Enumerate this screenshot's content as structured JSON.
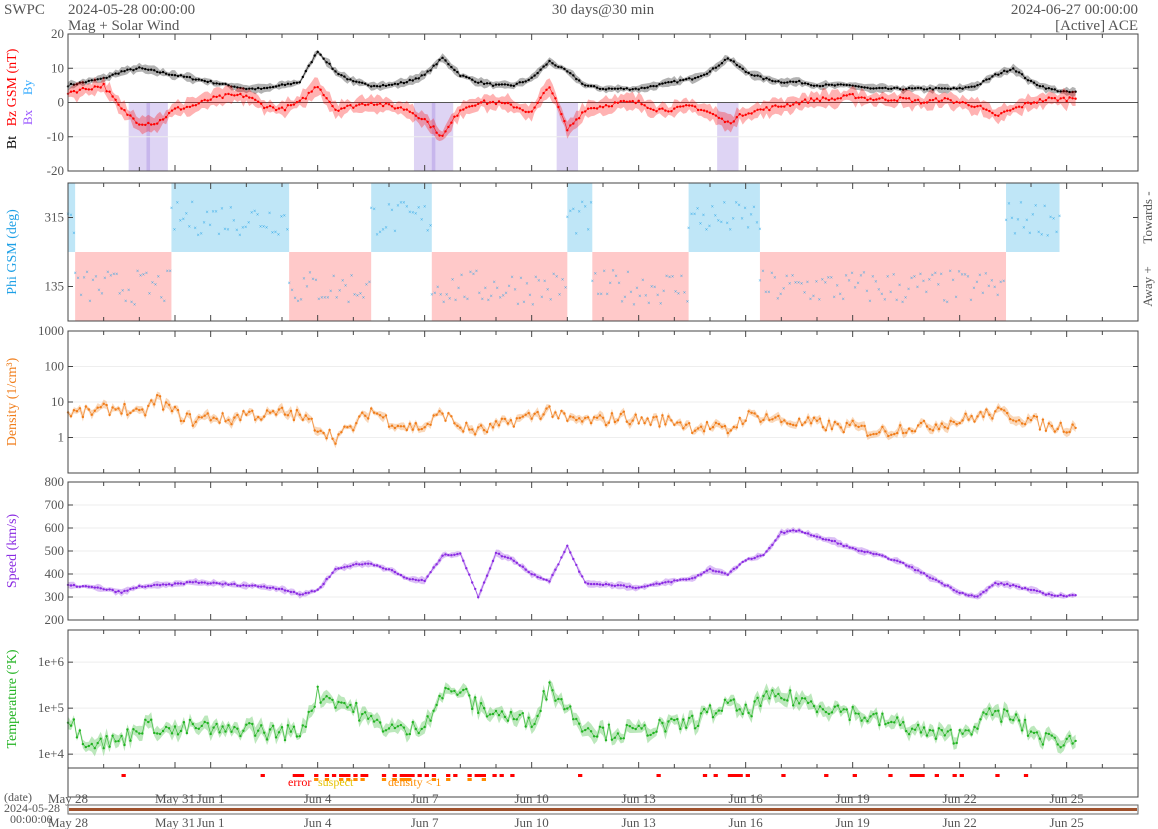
{
  "header": {
    "brand": "SWPC",
    "start": "2024-05-28 00:00:00",
    "subtitle": "Mag + Solar Wind",
    "span": "30 days@30 min",
    "end": "2024-06-27 00:00:00",
    "source": "[Active] ACE"
  },
  "chart_data": [
    {
      "type": "line",
      "panel": "mag",
      "ylabel": "Bz GSM (nT)",
      "ylabel_bt": "Bt",
      "legend": [
        "Bx",
        "By"
      ],
      "ylim": [
        -20,
        20
      ],
      "yticks": [
        "20",
        "10",
        "0",
        "-10",
        "-20"
      ],
      "x_step_days": 0.5,
      "series": [
        {
          "name": "Bt",
          "color": "#000000",
          "values": [
            5,
            6,
            7,
            9,
            10,
            9,
            8,
            7,
            6,
            5,
            4,
            4,
            5,
            6,
            15,
            9,
            6,
            5,
            5,
            6,
            8,
            13,
            8,
            6,
            5,
            5,
            7,
            12,
            9,
            5,
            4,
            4,
            4,
            5,
            6,
            7,
            9,
            13,
            9,
            7,
            6,
            6,
            5,
            5,
            5,
            4,
            4,
            4,
            4,
            4,
            4,
            5,
            8,
            10,
            6,
            4,
            3,
            3
          ]
        },
        {
          "name": "Bz",
          "color": "#ff0000",
          "values": [
            3,
            4,
            5,
            -2,
            -6,
            -6,
            -2,
            -1,
            1,
            2,
            2,
            -1,
            -2,
            0,
            5,
            -2,
            -1,
            0,
            -1,
            -2,
            -5,
            -10,
            -2,
            0,
            0,
            -1,
            -3,
            5,
            -8,
            -2,
            -1,
            0,
            0,
            -2,
            -2,
            -1,
            -3,
            -6,
            -3,
            -2,
            -1,
            0,
            1,
            1,
            2,
            1,
            1,
            1,
            0,
            1,
            0,
            -1,
            -4,
            -2,
            0,
            1,
            1,
            2
          ]
        }
      ]
    },
    {
      "type": "scatter",
      "panel": "phi",
      "ylabel": "Phi GSM (deg)",
      "ylim": [
        45,
        405
      ],
      "yticks": [
        "315",
        "135"
      ],
      "right_labels": [
        "Towards -",
        "Away +"
      ],
      "sectors": [
        {
          "from": 0,
          "to": 0.2,
          "s": "towards"
        },
        {
          "from": 0.2,
          "to": 2.9,
          "s": "away"
        },
        {
          "from": 2.9,
          "to": 6.2,
          "s": "towards"
        },
        {
          "from": 6.2,
          "to": 8.5,
          "s": "away"
        },
        {
          "from": 8.5,
          "to": 10.2,
          "s": "towards"
        },
        {
          "from": 10.2,
          "to": 14,
          "s": "away"
        },
        {
          "from": 14,
          "to": 14.7,
          "s": "towards"
        },
        {
          "from": 14.7,
          "to": 17.4,
          "s": "away"
        },
        {
          "from": 17.4,
          "to": 19.4,
          "s": "towards"
        },
        {
          "from": 19.4,
          "to": 26.3,
          "s": "away"
        },
        {
          "from": 26.3,
          "to": 27.8,
          "s": "towards"
        }
      ],
      "colors": {
        "towards": "#bfe6f7",
        "away": "#ffc9c9",
        "points": "#1ea0e6"
      }
    },
    {
      "type": "line",
      "panel": "density",
      "ylabel": "Density (1/cm³)",
      "scale": "log",
      "ylim": [
        0.1,
        1000
      ],
      "yticks": [
        "1000",
        "100",
        "10",
        "1"
      ],
      "color": "#f07d1a",
      "x_step_days": 0.5,
      "values": [
        5,
        5,
        6,
        7,
        4,
        12,
        5,
        3,
        4,
        3,
        5,
        4,
        5,
        4,
        2,
        1,
        2,
        6,
        3,
        2,
        2,
        5,
        2,
        1.5,
        2,
        3,
        4,
        6,
        3,
        3,
        3,
        4,
        3,
        3,
        3,
        2,
        2,
        1.5,
        4,
        4,
        3,
        2.5,
        2.5,
        2,
        2,
        1.5,
        1.5,
        2,
        2,
        2.5,
        3,
        4,
        5,
        4,
        3,
        2,
        2,
        2
      ]
    },
    {
      "type": "line",
      "panel": "speed",
      "ylabel": "Speed (km/s)",
      "ylim": [
        200,
        800
      ],
      "yticks": [
        "800",
        "700",
        "600",
        "500",
        "400",
        "300",
        "200"
      ],
      "color": "#8a2be2",
      "x_step_days": 0.5,
      "values": [
        350,
        345,
        335,
        320,
        345,
        350,
        355,
        365,
        360,
        355,
        350,
        345,
        335,
        310,
        330,
        420,
        440,
        445,
        420,
        380,
        370,
        480,
        490,
        300,
        490,
        460,
        400,
        370,
        520,
        360,
        355,
        350,
        340,
        355,
        370,
        380,
        420,
        400,
        460,
        480,
        580,
        590,
        560,
        540,
        510,
        490,
        470,
        440,
        400,
        360,
        320,
        300,
        360,
        350,
        330,
        310,
        305,
        310
      ]
    },
    {
      "type": "line",
      "panel": "temperature",
      "ylabel": "Temperature (°K)",
      "scale": "log",
      "ylim": [
        5000,
        5000000
      ],
      "yticks": [
        "1e+6",
        "1e+5",
        "1e+4"
      ],
      "color": "#22b322",
      "x_step_days": 0.5,
      "values": [
        60000,
        20000,
        18000,
        20000,
        40000,
        40000,
        30000,
        40000,
        35000,
        30000,
        40000,
        30000,
        30000,
        30000,
        200000,
        150000,
        100000,
        50000,
        40000,
        30000,
        50000,
        200000,
        250000,
        100000,
        80000,
        60000,
        50000,
        300000,
        100000,
        40000,
        30000,
        30000,
        30000,
        40000,
        40000,
        50000,
        80000,
        120000,
        80000,
        150000,
        180000,
        150000,
        120000,
        100000,
        80000,
        60000,
        50000,
        40000,
        30000,
        25000,
        25000,
        50000,
        80000,
        60000,
        30000,
        20000,
        20000,
        20000
      ]
    }
  ],
  "flags": {
    "labels": {
      "error": "error",
      "suspect": "suspect",
      "density": "density < 1"
    },
    "error_days": [
      1.5,
      5.4,
      6.3,
      6.4,
      6.5,
      6.9,
      7.2,
      7.4,
      7.6,
      7.7,
      7.8,
      8.0,
      8.2,
      8.3,
      8.8,
      9.1,
      9.3,
      9.4,
      9.5,
      9.6,
      9.8,
      10.0,
      10.2,
      10.6,
      10.8,
      11.2,
      11.4,
      11.5,
      11.6,
      11.9,
      12.1,
      12.4,
      14.3,
      16.5,
      17.8,
      18.1,
      18.5,
      18.6,
      18.7,
      18.8,
      19.0,
      20.0,
      21.2,
      22.0,
      23.0,
      23.6,
      23.7,
      23.8,
      23.9,
      24.3,
      24.8,
      25.0,
      26.0,
      26.8
    ]
  },
  "xaxis": {
    "label": "(date)",
    "ticks": [
      {
        "day": 0,
        "label": "May 28"
      },
      {
        "day": 3,
        "label": "May 31"
      },
      {
        "day": 4,
        "label": "Jun 1"
      },
      {
        "day": 7,
        "label": "Jun 4"
      },
      {
        "day": 10,
        "label": "Jun 7"
      },
      {
        "day": 13,
        "label": "Jun 10"
      },
      {
        "day": 16,
        "label": "Jun 13"
      },
      {
        "day": 19,
        "label": "Jun 16"
      },
      {
        "day": 22,
        "label": "Jun 19"
      },
      {
        "day": 25,
        "label": "Jun 22"
      },
      {
        "day": 28,
        "label": "Jun 25"
      }
    ],
    "range_start_date": "2024-05-28",
    "range_start_time": "00:00:00"
  }
}
